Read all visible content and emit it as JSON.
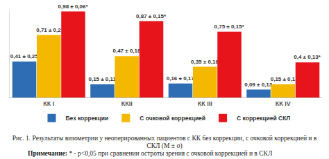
{
  "chart_data": {
    "type": "bar",
    "categories": [
      "КК I",
      "ККII",
      "КК III",
      "КК IV"
    ],
    "series": [
      {
        "name": "Без коррекции",
        "color": "#2e6db4",
        "values": [
          0.41,
          0.15,
          0.16,
          0.09
        ],
        "value_labels": [
          "0,41 ± 0,25",
          "0,15 ± 0,11",
          "0,16 ± 0,17",
          "0,09 ± 0,13"
        ]
      },
      {
        "name": "С очковой коррекцией",
        "color": "#f5b800",
        "values": [
          0.71,
          0.47,
          0.35,
          0.15
        ],
        "value_labels": [
          "0,71 ± 0,2",
          "0,47 ± 0,18",
          "0,35 ± 0,16",
          "0,15 ± 0,1"
        ]
      },
      {
        "name": "С коррекцией СКЛ",
        "color": "#e8141c",
        "values": [
          0.98,
          0.87,
          0.75,
          0.4
        ],
        "value_labels": [
          "0,98 ± 0,06*",
          "0,87 ± 0,15*",
          "0,75 ± 0,15*",
          "0,4 ± 0,13*"
        ]
      }
    ],
    "ylim": [
      0,
      1
    ],
    "yticks": [],
    "grid": false,
    "data_labels": true,
    "tick_labels": "x",
    "legend": "bottom",
    "caption": "Рис. 1. Результаты визометрии у неоперированных пациентов с КК без коррекции, с очковой коррекцией и в СКЛ (M ± σ)",
    "note_label": "Примечание:",
    "note": "* - p<0,05 при сравнении остроты зрения с очковой коррекцией  и в СКЛ"
  }
}
